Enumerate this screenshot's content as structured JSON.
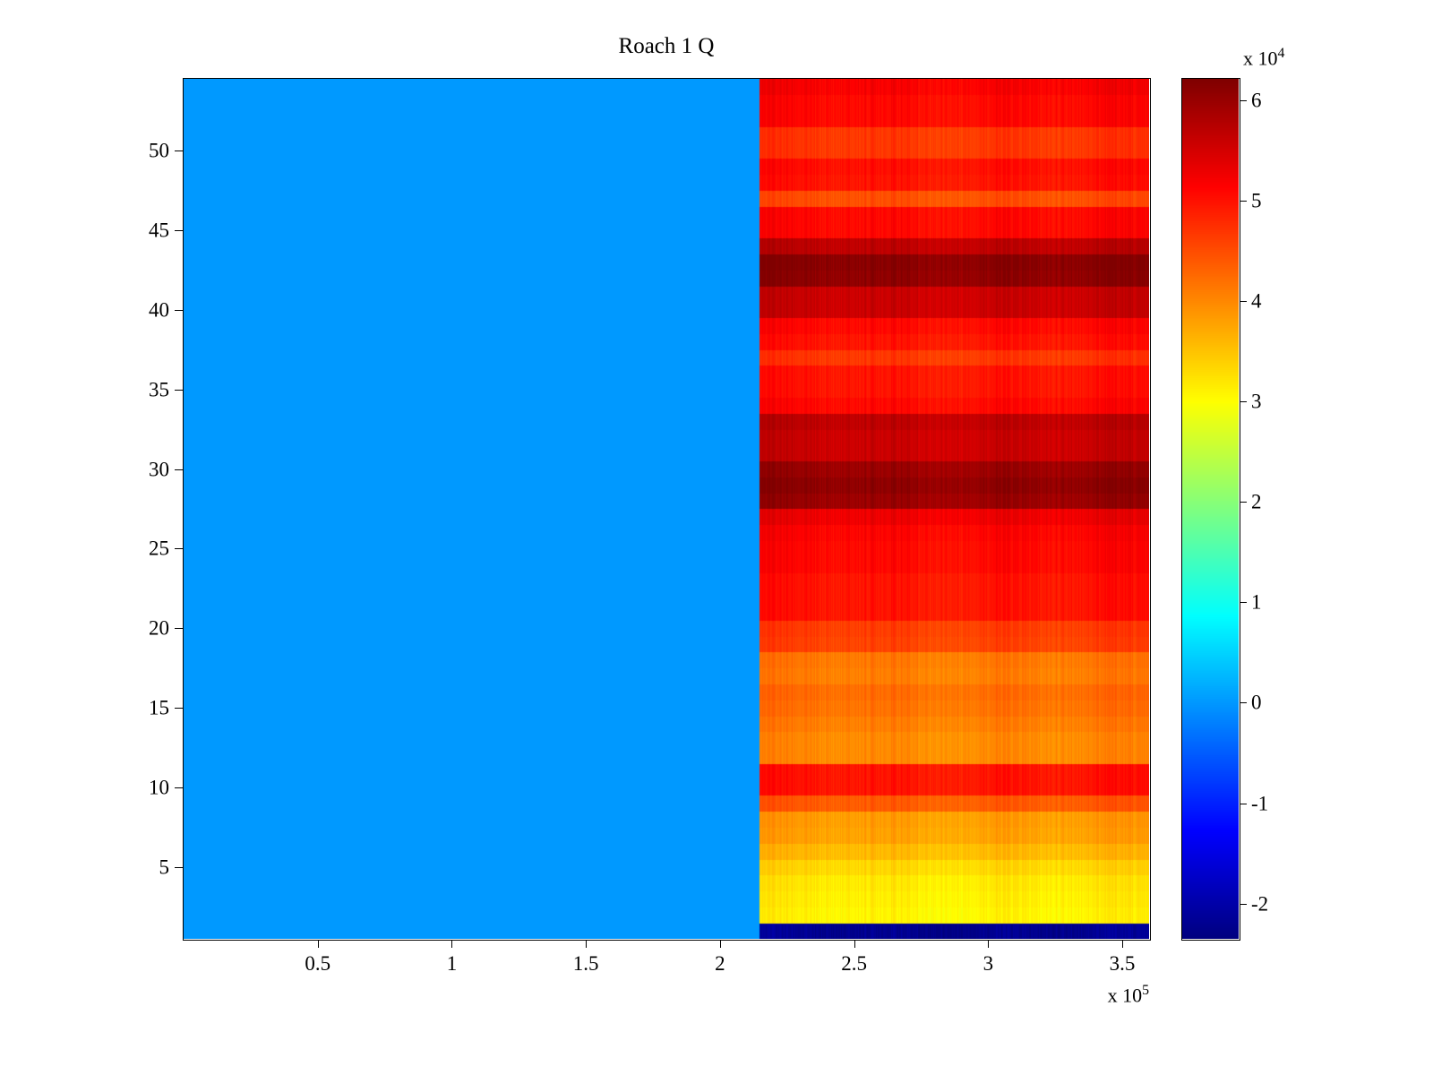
{
  "chart_data": {
    "type": "heatmap",
    "title": "Roach 1 Q",
    "colormap": "jet",
    "x_range": [
      0,
      360000
    ],
    "x_split": 214700,
    "left_region_value": 0,
    "n_rows": 54,
    "row_values_bottom_to_top": [
      -22000,
      31000,
      31500,
      32000,
      33500,
      36000,
      38000,
      38500,
      44000,
      50000,
      50000,
      40000,
      40000,
      41000,
      42000,
      42500,
      41000,
      41500,
      46000,
      46500,
      50000,
      50000,
      50000,
      51000,
      51000,
      51500,
      53000,
      60000,
      61000,
      60000,
      56000,
      56000,
      57000,
      51000,
      50000,
      50000,
      47000,
      50000,
      51000,
      56000,
      56000,
      61000,
      61500,
      57000,
      51000,
      51000,
      45000,
      50000,
      50500,
      47000,
      47000,
      51000,
      51000,
      52000
    ],
    "caxis": [
      -23500,
      62100
    ],
    "x_tick_values": [
      50000,
      100000,
      150000,
      200000,
      250000,
      300000,
      350000
    ],
    "x_tick_labels": [
      "0.5",
      "1",
      "1.5",
      "2",
      "2.5",
      "3",
      "3.5"
    ],
    "y_tick_values": [
      5,
      10,
      15,
      20,
      25,
      30,
      35,
      40,
      45,
      50
    ],
    "y_tick_labels": [
      "5",
      "10",
      "15",
      "20",
      "25",
      "30",
      "35",
      "40",
      "45",
      "50"
    ],
    "colorbar_tick_values": [
      -20000,
      -10000,
      0,
      10000,
      20000,
      30000,
      40000,
      50000,
      60000
    ],
    "colorbar_tick_labels": [
      "-2",
      "-1",
      "0",
      "1",
      "2",
      "3",
      "4",
      "5",
      "6"
    ],
    "x_exponent": {
      "prefix": "x 10",
      "exp": "5"
    },
    "cb_exponent": {
      "prefix": "x 10",
      "exp": "4"
    },
    "legend_position": "colorbar-right",
    "grid": false
  }
}
